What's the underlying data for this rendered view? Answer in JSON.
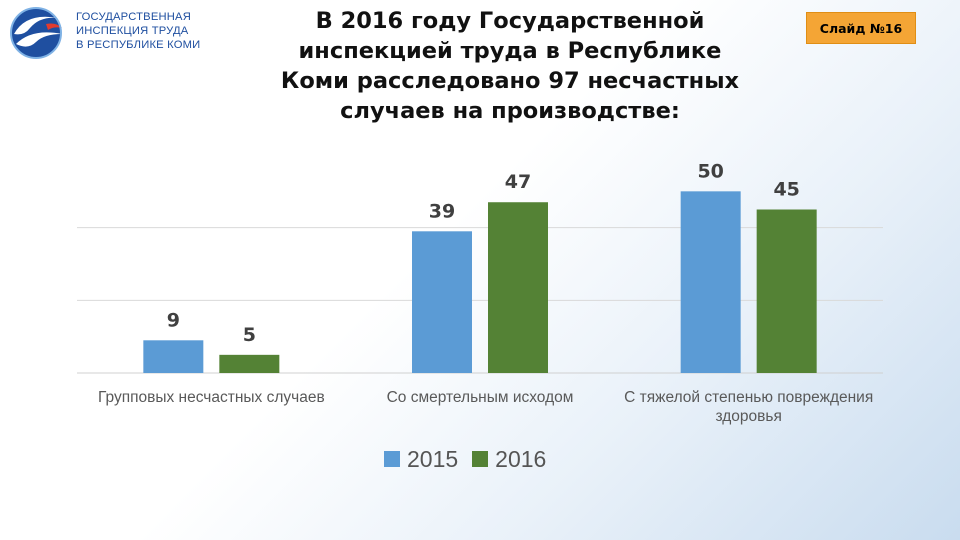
{
  "header": {
    "logo_lines": [
      "ГОСУДАРСТВЕННАЯ",
      "ИНСПЕКЦИЯ ТРУДА",
      "В РЕСПУБЛИКЕ КОМИ"
    ],
    "title_lines": [
      "В 2016 году Государственной",
      "инспекцией труда в Республике",
      "Коми расследовано 97 несчастных",
      "случаев на производстве:"
    ],
    "slide_badge": "Слайд №16"
  },
  "colors": {
    "series_2015": "#5b9bd5",
    "series_2016": "#548235",
    "badge": "#f4a535",
    "logo": "#1f4fa0"
  },
  "chart_data": {
    "type": "bar",
    "title": "",
    "xlabel": "",
    "ylabel": "",
    "ylim": [
      0,
      60
    ],
    "grid": true,
    "legend_position": "bottom",
    "categories": [
      [
        "Групповых несчастных случаев"
      ],
      [
        "Со смертельным исходом"
      ],
      [
        "С тяжелой степенью повреждения",
        "здоровья"
      ]
    ],
    "series": [
      {
        "name": "2015",
        "values": [
          9,
          39,
          50
        ]
      },
      {
        "name": "2016",
        "values": [
          5,
          47,
          45
        ]
      }
    ]
  }
}
